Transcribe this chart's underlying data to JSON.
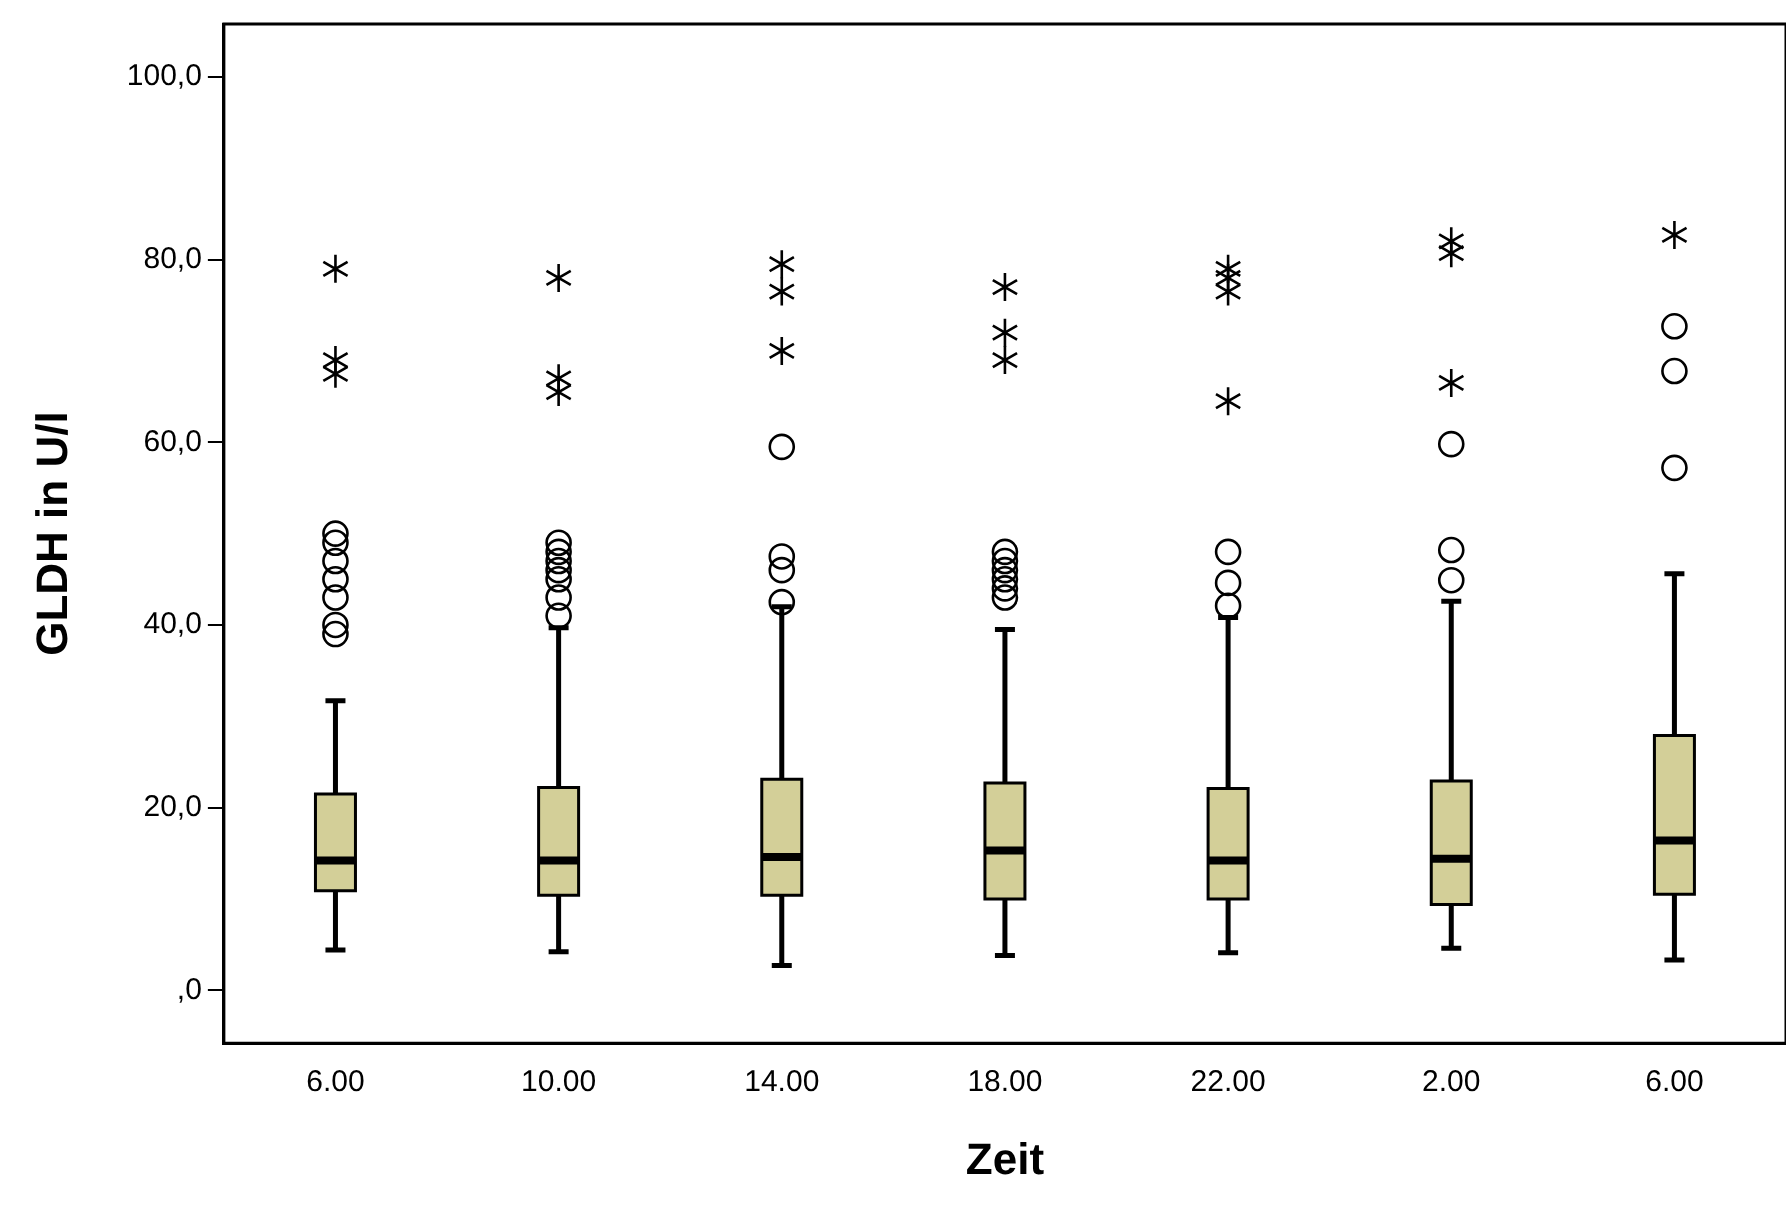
{
  "chart_data": {
    "type": "box",
    "xlabel": "Zeit",
    "ylabel": "GLDH in U/l",
    "categories": [
      "6.00",
      "10.00",
      "14.00",
      "18.00",
      "22.00",
      "2.00",
      "6.00"
    ],
    "color": "#d3cf98",
    "ylim": [
      -5.8,
      105.8
    ],
    "yticks": [
      {
        "value": 0,
        "label": ",0"
      },
      {
        "value": 20,
        "label": "20,0"
      },
      {
        "value": 40,
        "label": "40,0"
      },
      {
        "value": 60,
        "label": "60,0"
      },
      {
        "value": 80,
        "label": "80,0"
      },
      {
        "value": 100,
        "label": "100,0"
      }
    ],
    "grid": false,
    "boxes": [
      {
        "low": 4.4,
        "q1": 10.9,
        "median": 14.2,
        "q3": 21.5,
        "high": 31.7,
        "outliers": [
          39,
          40,
          43,
          45,
          47,
          49,
          50,
          67.5,
          69,
          79
        ]
      },
      {
        "low": 4.2,
        "q1": 10.4,
        "median": 14.2,
        "q3": 22.2,
        "high": 39.7,
        "outliers": [
          41,
          43,
          45,
          46,
          47,
          48,
          49,
          65.5,
          67,
          78
        ]
      },
      {
        "low": 2.7,
        "q1": 10.4,
        "median": 14.6,
        "q3": 23.1,
        "high": 42,
        "outliers": [
          42.5,
          46,
          47.5,
          59.5,
          70,
          76.5,
          79.5
        ]
      },
      {
        "low": 3.8,
        "q1": 10,
        "median": 15.3,
        "q3": 22.7,
        "high": 39.5,
        "outliers": [
          43,
          44,
          45,
          46,
          47,
          48,
          69,
          72,
          77
        ]
      },
      {
        "low": 4.1,
        "q1": 10,
        "median": 14.2,
        "q3": 22.1,
        "high": 40.8,
        "outliers": [
          42.1,
          44.6,
          48,
          64.5,
          76.5,
          78,
          79
        ]
      },
      {
        "low": 4.6,
        "q1": 9.4,
        "median": 14.4,
        "q3": 22.9,
        "high": 42.6,
        "outliers": [
          44.9,
          48.2,
          59.8,
          66.5,
          80.7,
          82
        ]
      },
      {
        "low": 3.3,
        "q1": 10.5,
        "median": 16.4,
        "q3": 27.9,
        "high": 45.6,
        "outliers": [
          57.2,
          67.8,
          72.7,
          82.7
        ]
      }
    ]
  }
}
